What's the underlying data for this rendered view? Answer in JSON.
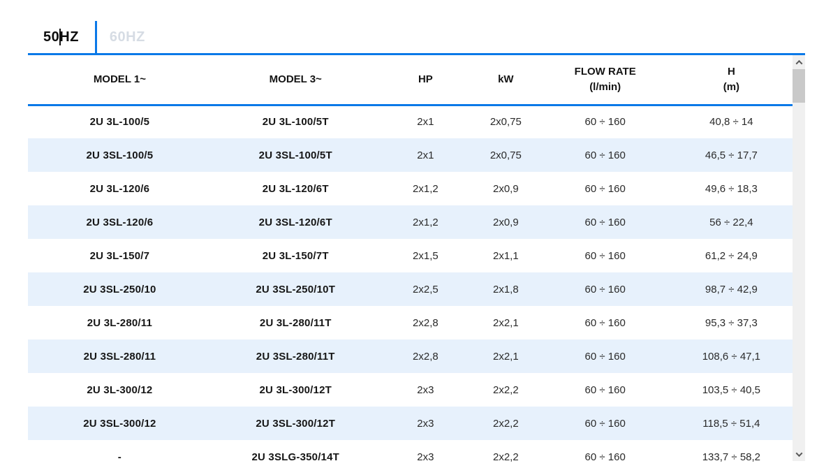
{
  "colors": {
    "accent": "#0b79e8",
    "row_alt": "#e7f1fc",
    "inactive_tab": "#d6dce4",
    "scroll_track": "#f0f0f0",
    "scroll_thumb": "#c9c9c9",
    "scroll_arrow": "#5a5a5a"
  },
  "tabs": [
    {
      "label": "50HZ",
      "active": true
    },
    {
      "label": "60HZ",
      "active": false
    }
  ],
  "table": {
    "columns": [
      {
        "line1": "MODEL 1~",
        "line2": ""
      },
      {
        "line1": "MODEL 3~",
        "line2": ""
      },
      {
        "line1": "HP",
        "line2": ""
      },
      {
        "line1": "kW",
        "line2": ""
      },
      {
        "line1": "FLOW RATE",
        "line2": "(l/min)"
      },
      {
        "line1": "H",
        "line2": "(m)"
      }
    ],
    "row_keys": [
      "model1",
      "model3",
      "hp",
      "kw",
      "flow",
      "h"
    ],
    "rows": [
      {
        "model1": "2U 3L-100/5",
        "model3": "2U 3L-100/5T",
        "hp": "2x1",
        "kw": "2x0,75",
        "flow": "60 ÷ 160",
        "h": "40,8 ÷ 14"
      },
      {
        "model1": "2U 3SL-100/5",
        "model3": "2U 3SL-100/5T",
        "hp": "2x1",
        "kw": "2x0,75",
        "flow": "60 ÷ 160",
        "h": "46,5 ÷ 17,7"
      },
      {
        "model1": "2U 3L-120/6",
        "model3": "2U 3L-120/6T",
        "hp": "2x1,2",
        "kw": "2x0,9",
        "flow": "60 ÷ 160",
        "h": "49,6 ÷ 18,3"
      },
      {
        "model1": "2U 3SL-120/6",
        "model3": "2U 3SL-120/6T",
        "hp": "2x1,2",
        "kw": "2x0,9",
        "flow": "60 ÷ 160",
        "h": "56 ÷ 22,4"
      },
      {
        "model1": "2U 3L-150/7",
        "model3": "2U 3L-150/7T",
        "hp": "2x1,5",
        "kw": "2x1,1",
        "flow": "60 ÷ 160",
        "h": "61,2 ÷ 24,9"
      },
      {
        "model1": "2U 3SL-250/10",
        "model3": "2U 3SL-250/10T",
        "hp": "2x2,5",
        "kw": "2x1,8",
        "flow": "60 ÷ 160",
        "h": "98,7 ÷ 42,9"
      },
      {
        "model1": "2U 3L-280/11",
        "model3": "2U 3L-280/11T",
        "hp": "2x2,8",
        "kw": "2x2,1",
        "flow": "60 ÷ 160",
        "h": "95,3 ÷ 37,3"
      },
      {
        "model1": "2U 3SL-280/11",
        "model3": "2U 3SL-280/11T",
        "hp": "2x2,8",
        "kw": "2x2,1",
        "flow": "60 ÷ 160",
        "h": "108,6 ÷ 47,1"
      },
      {
        "model1": "2U 3L-300/12",
        "model3": "2U 3L-300/12T",
        "hp": "2x3",
        "kw": "2x2,2",
        "flow": "60 ÷ 160",
        "h": "103,5 ÷ 40,5"
      },
      {
        "model1": "2U 3SL-300/12",
        "model3": "2U 3SL-300/12T",
        "hp": "2x3",
        "kw": "2x2,2",
        "flow": "60 ÷ 160",
        "h": "118,5 ÷ 51,4"
      },
      {
        "model1": "-",
        "model3": "2U 3SLG-350/14T",
        "hp": "2x3",
        "kw": "2x2,2",
        "flow": "60 ÷ 160",
        "h": "133,7 ÷ 58,2"
      }
    ]
  },
  "scrollbar": {
    "up_icon": "chevron-up",
    "down_icon": "chevron-down"
  }
}
